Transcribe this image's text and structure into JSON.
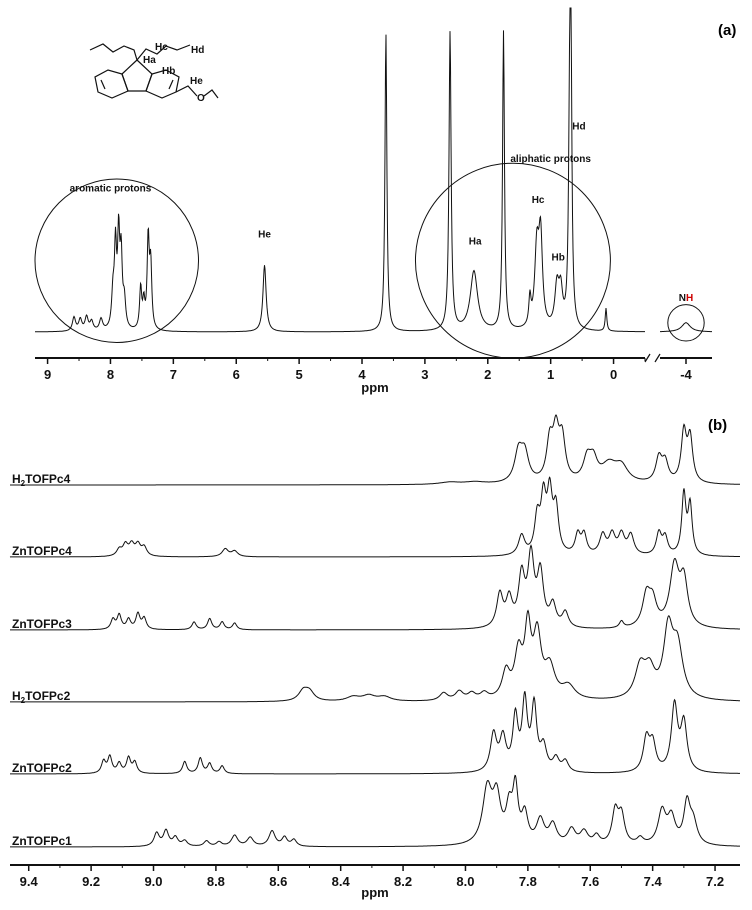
{
  "chart_data": [
    {
      "type": "line",
      "panel_label": "(a)",
      "xlabel": "ppm",
      "ylabel": "",
      "x_reversed": true,
      "axis_break": [
        -0.5,
        -3.5
      ],
      "x_ticks": [
        9,
        8,
        7,
        6,
        5,
        4,
        3,
        2,
        1,
        0,
        -4
      ],
      "x_tick_labels": [
        "9",
        "8",
        "7",
        "6",
        "5",
        "4",
        "3",
        "2",
        "1",
        "0",
        "-4"
      ],
      "xlim": [
        9.2,
        -4.5
      ],
      "ylim": [
        0,
        1.0
      ],
      "peaks": [
        {
          "x": 8.58,
          "h": 0.06,
          "w": 0.03
        },
        {
          "x": 8.48,
          "h": 0.05,
          "w": 0.03
        },
        {
          "x": 8.38,
          "h": 0.06,
          "w": 0.03
        },
        {
          "x": 8.3,
          "h": 0.04,
          "w": 0.03
        },
        {
          "x": 8.15,
          "h": 0.05,
          "w": 0.03
        },
        {
          "x": 7.96,
          "h": 0.15,
          "w": 0.025
        },
        {
          "x": 7.92,
          "h": 0.34,
          "w": 0.02
        },
        {
          "x": 7.87,
          "h": 0.39,
          "w": 0.02
        },
        {
          "x": 7.83,
          "h": 0.3,
          "w": 0.02
        },
        {
          "x": 7.78,
          "h": 0.12,
          "w": 0.025
        },
        {
          "x": 7.52,
          "h": 0.18,
          "w": 0.02
        },
        {
          "x": 7.47,
          "h": 0.11,
          "w": 0.02
        },
        {
          "x": 7.4,
          "h": 0.39,
          "w": 0.02
        },
        {
          "x": 7.36,
          "h": 0.27,
          "w": 0.02
        },
        {
          "x": 5.55,
          "h": 0.29,
          "w": 0.03
        },
        {
          "x": 3.62,
          "h": 1.3,
          "w": 0.018
        },
        {
          "x": 2.6,
          "h": 1.3,
          "w": 0.02
        },
        {
          "x": 2.22,
          "h": 0.26,
          "w": 0.07
        },
        {
          "x": 1.75,
          "h": 1.3,
          "w": 0.018
        },
        {
          "x": 1.33,
          "h": 0.12,
          "w": 0.02
        },
        {
          "x": 1.22,
          "h": 0.34,
          "w": 0.04
        },
        {
          "x": 1.16,
          "h": 0.38,
          "w": 0.035
        },
        {
          "x": 0.9,
          "h": 0.18,
          "w": 0.04
        },
        {
          "x": 0.84,
          "h": 0.15,
          "w": 0.035
        },
        {
          "x": 0.7,
          "h": 0.66,
          "w": 0.02
        },
        {
          "x": 0.68,
          "h": 1.3,
          "w": 0.018
        },
        {
          "x": 0.12,
          "h": 0.1,
          "w": 0.015
        },
        {
          "x": -4.0,
          "h": 0.04,
          "w": 0.1
        }
      ],
      "annotations": [
        {
          "text": "aromatic protons",
          "x": 8.0,
          "y": 0.61
        },
        {
          "text": "aliphatic protons",
          "x": 1.0,
          "y": 0.74
        },
        {
          "text": "He",
          "x": 5.55,
          "y": 0.41
        },
        {
          "text": "Ha",
          "x": 2.2,
          "y": 0.38
        },
        {
          "text": "Hc",
          "x": 1.2,
          "y": 0.56
        },
        {
          "text": "Hb",
          "x": 0.88,
          "y": 0.31
        },
        {
          "text": "Hd",
          "x": 0.55,
          "y": 0.88
        }
      ],
      "nh_label": {
        "prefix": "N",
        "highlight": "H",
        "highlight_color": "#cc0000"
      },
      "circles": [
        {
          "name": "aromatic-region-circle",
          "cx": 7.9,
          "cy": 0.31,
          "rx": 1.3
        },
        {
          "name": "aliphatic-region-circle",
          "cx": 1.6,
          "cy": 0.31,
          "rx": 1.55
        },
        {
          "name": "nh-circle",
          "cx": -4.0,
          "cy": 0.04,
          "rx": 0.35
        }
      ],
      "structure_labels": [
        "Ha",
        "Hb",
        "Hc",
        "Hd",
        "He",
        "O"
      ]
    },
    {
      "type": "line",
      "panel_label": "(b)",
      "xlabel": "ppm",
      "ylabel": "",
      "x_reversed": true,
      "x_ticks": [
        9.4,
        9.2,
        9.0,
        8.8,
        8.6,
        8.4,
        8.2,
        8.0,
        7.8,
        7.6,
        7.4,
        7.2
      ],
      "x_tick_labels": [
        "9.4",
        "9.2",
        "9.0",
        "8.8",
        "8.6",
        "8.4",
        "8.2",
        "8.0",
        "7.8",
        "7.6",
        "7.4",
        "7.2"
      ],
      "xlim": [
        9.46,
        7.12
      ],
      "series": [
        {
          "name": "H2TOFPc4",
          "label_parts": [
            "H",
            "2",
            "TOFPc4"
          ],
          "peaks": [
            {
              "x": 8.05,
              "h": 0.02,
              "w": 0.04
            },
            {
              "x": 7.97,
              "h": 0.02,
              "w": 0.04
            },
            {
              "x": 7.83,
              "h": 0.27,
              "w": 0.015
            },
            {
              "x": 7.81,
              "h": 0.25,
              "w": 0.015
            },
            {
              "x": 7.73,
              "h": 0.35,
              "w": 0.012
            },
            {
              "x": 7.71,
              "h": 0.42,
              "w": 0.012
            },
            {
              "x": 7.69,
              "h": 0.37,
              "w": 0.012
            },
            {
              "x": 7.61,
              "h": 0.2,
              "w": 0.015
            },
            {
              "x": 7.59,
              "h": 0.18,
              "w": 0.015
            },
            {
              "x": 7.54,
              "h": 0.16,
              "w": 0.03
            },
            {
              "x": 7.5,
              "h": 0.14,
              "w": 0.025
            },
            {
              "x": 7.38,
              "h": 0.22,
              "w": 0.012
            },
            {
              "x": 7.36,
              "h": 0.18,
              "w": 0.012
            },
            {
              "x": 7.3,
              "h": 0.45,
              "w": 0.01
            },
            {
              "x": 7.28,
              "h": 0.4,
              "w": 0.01
            }
          ]
        },
        {
          "name": "ZnTOFPc4",
          "label_parts": [
            "ZnTOFPc4"
          ],
          "peaks": [
            {
              "x": 9.11,
              "h": 0.06,
              "w": 0.01
            },
            {
              "x": 9.09,
              "h": 0.1,
              "w": 0.01
            },
            {
              "x": 9.07,
              "h": 0.1,
              "w": 0.01
            },
            {
              "x": 9.05,
              "h": 0.1,
              "w": 0.01
            },
            {
              "x": 9.03,
              "h": 0.08,
              "w": 0.01
            },
            {
              "x": 8.77,
              "h": 0.07,
              "w": 0.012
            },
            {
              "x": 8.74,
              "h": 0.05,
              "w": 0.012
            },
            {
              "x": 7.82,
              "h": 0.18,
              "w": 0.012
            },
            {
              "x": 7.77,
              "h": 0.32,
              "w": 0.01
            },
            {
              "x": 7.75,
              "h": 0.48,
              "w": 0.01
            },
            {
              "x": 7.73,
              "h": 0.52,
              "w": 0.01
            },
            {
              "x": 7.71,
              "h": 0.4,
              "w": 0.01
            },
            {
              "x": 7.64,
              "h": 0.18,
              "w": 0.01
            },
            {
              "x": 7.62,
              "h": 0.18,
              "w": 0.01
            },
            {
              "x": 7.56,
              "h": 0.18,
              "w": 0.012
            },
            {
              "x": 7.53,
              "h": 0.18,
              "w": 0.012
            },
            {
              "x": 7.5,
              "h": 0.18,
              "w": 0.012
            },
            {
              "x": 7.47,
              "h": 0.18,
              "w": 0.012
            },
            {
              "x": 7.38,
              "h": 0.2,
              "w": 0.01
            },
            {
              "x": 7.36,
              "h": 0.16,
              "w": 0.01
            },
            {
              "x": 7.3,
              "h": 0.55,
              "w": 0.008
            },
            {
              "x": 7.28,
              "h": 0.45,
              "w": 0.008
            }
          ]
        },
        {
          "name": "ZnTOFPc3",
          "label_parts": [
            "ZnTOFPc3"
          ],
          "peaks": [
            {
              "x": 9.13,
              "h": 0.09,
              "w": 0.008
            },
            {
              "x": 9.11,
              "h": 0.13,
              "w": 0.008
            },
            {
              "x": 9.08,
              "h": 0.09,
              "w": 0.008
            },
            {
              "x": 9.05,
              "h": 0.14,
              "w": 0.008
            },
            {
              "x": 9.03,
              "h": 0.1,
              "w": 0.008
            },
            {
              "x": 8.87,
              "h": 0.07,
              "w": 0.008
            },
            {
              "x": 8.82,
              "h": 0.1,
              "w": 0.008
            },
            {
              "x": 8.78,
              "h": 0.07,
              "w": 0.008
            },
            {
              "x": 8.74,
              "h": 0.06,
              "w": 0.008
            },
            {
              "x": 7.89,
              "h": 0.3,
              "w": 0.012
            },
            {
              "x": 7.86,
              "h": 0.25,
              "w": 0.012
            },
            {
              "x": 7.82,
              "h": 0.45,
              "w": 0.012
            },
            {
              "x": 7.79,
              "h": 0.62,
              "w": 0.012
            },
            {
              "x": 7.76,
              "h": 0.48,
              "w": 0.012
            },
            {
              "x": 7.72,
              "h": 0.2,
              "w": 0.012
            },
            {
              "x": 7.68,
              "h": 0.14,
              "w": 0.012
            },
            {
              "x": 7.5,
              "h": 0.06,
              "w": 0.008
            },
            {
              "x": 7.42,
              "h": 0.28,
              "w": 0.015
            },
            {
              "x": 7.4,
              "h": 0.22,
              "w": 0.015
            },
            {
              "x": 7.33,
              "h": 0.55,
              "w": 0.018
            },
            {
              "x": 7.3,
              "h": 0.4,
              "w": 0.015
            }
          ]
        },
        {
          "name": "H2TOFPc2",
          "label_parts": [
            "H",
            "2",
            "TOFPc2"
          ],
          "peaks": [
            {
              "x": 8.52,
              "h": 0.09,
              "w": 0.018
            },
            {
              "x": 8.5,
              "h": 0.08,
              "w": 0.018
            },
            {
              "x": 8.36,
              "h": 0.04,
              "w": 0.025
            },
            {
              "x": 8.31,
              "h": 0.05,
              "w": 0.025
            },
            {
              "x": 8.26,
              "h": 0.04,
              "w": 0.025
            },
            {
              "x": 8.07,
              "h": 0.07,
              "w": 0.015
            },
            {
              "x": 8.02,
              "h": 0.08,
              "w": 0.015
            },
            {
              "x": 7.98,
              "h": 0.06,
              "w": 0.015
            },
            {
              "x": 7.94,
              "h": 0.06,
              "w": 0.015
            },
            {
              "x": 7.87,
              "h": 0.24,
              "w": 0.015
            },
            {
              "x": 7.83,
              "h": 0.4,
              "w": 0.015
            },
            {
              "x": 7.8,
              "h": 0.6,
              "w": 0.012
            },
            {
              "x": 7.77,
              "h": 0.55,
              "w": 0.015
            },
            {
              "x": 7.73,
              "h": 0.28,
              "w": 0.02
            },
            {
              "x": 7.67,
              "h": 0.12,
              "w": 0.025
            },
            {
              "x": 7.44,
              "h": 0.28,
              "w": 0.02
            },
            {
              "x": 7.41,
              "h": 0.24,
              "w": 0.02
            },
            {
              "x": 7.35,
              "h": 0.6,
              "w": 0.018
            },
            {
              "x": 7.32,
              "h": 0.45,
              "w": 0.02
            }
          ]
        },
        {
          "name": "ZnTOFPc2",
          "label_parts": [
            "ZnTOFPc2"
          ],
          "peaks": [
            {
              "x": 9.16,
              "h": 0.11,
              "w": 0.008
            },
            {
              "x": 9.14,
              "h": 0.15,
              "w": 0.008
            },
            {
              "x": 9.11,
              "h": 0.09,
              "w": 0.008
            },
            {
              "x": 9.08,
              "h": 0.14,
              "w": 0.008
            },
            {
              "x": 9.06,
              "h": 0.1,
              "w": 0.008
            },
            {
              "x": 8.9,
              "h": 0.11,
              "w": 0.008
            },
            {
              "x": 8.85,
              "h": 0.14,
              "w": 0.008
            },
            {
              "x": 8.82,
              "h": 0.09,
              "w": 0.008
            },
            {
              "x": 8.78,
              "h": 0.07,
              "w": 0.008
            },
            {
              "x": 7.91,
              "h": 0.34,
              "w": 0.012
            },
            {
              "x": 7.88,
              "h": 0.3,
              "w": 0.012
            },
            {
              "x": 7.84,
              "h": 0.48,
              "w": 0.01
            },
            {
              "x": 7.81,
              "h": 0.62,
              "w": 0.01
            },
            {
              "x": 7.78,
              "h": 0.58,
              "w": 0.01
            },
            {
              "x": 7.75,
              "h": 0.22,
              "w": 0.012
            },
            {
              "x": 7.71,
              "h": 0.12,
              "w": 0.012
            },
            {
              "x": 7.68,
              "h": 0.1,
              "w": 0.012
            },
            {
              "x": 7.42,
              "h": 0.3,
              "w": 0.012
            },
            {
              "x": 7.4,
              "h": 0.25,
              "w": 0.012
            },
            {
              "x": 7.33,
              "h": 0.6,
              "w": 0.012
            },
            {
              "x": 7.3,
              "h": 0.44,
              "w": 0.012
            }
          ]
        },
        {
          "name": "ZnTOFPc1",
          "label_parts": [
            "ZnTOFPc1"
          ],
          "peaks": [
            {
              "x": 8.99,
              "h": 0.12,
              "w": 0.01
            },
            {
              "x": 8.96,
              "h": 0.14,
              "w": 0.01
            },
            {
              "x": 8.93,
              "h": 0.08,
              "w": 0.01
            },
            {
              "x": 8.9,
              "h": 0.05,
              "w": 0.01
            },
            {
              "x": 8.83,
              "h": 0.05,
              "w": 0.01
            },
            {
              "x": 8.79,
              "h": 0.04,
              "w": 0.01
            },
            {
              "x": 8.74,
              "h": 0.1,
              "w": 0.012
            },
            {
              "x": 8.69,
              "h": 0.08,
              "w": 0.012
            },
            {
              "x": 8.62,
              "h": 0.14,
              "w": 0.012
            },
            {
              "x": 8.58,
              "h": 0.08,
              "w": 0.01
            },
            {
              "x": 8.55,
              "h": 0.06,
              "w": 0.01
            },
            {
              "x": 7.93,
              "h": 0.5,
              "w": 0.018
            },
            {
              "x": 7.9,
              "h": 0.4,
              "w": 0.015
            },
            {
              "x": 7.86,
              "h": 0.3,
              "w": 0.012
            },
            {
              "x": 7.84,
              "h": 0.48,
              "w": 0.01
            },
            {
              "x": 7.81,
              "h": 0.26,
              "w": 0.012
            },
            {
              "x": 7.76,
              "h": 0.22,
              "w": 0.015
            },
            {
              "x": 7.72,
              "h": 0.18,
              "w": 0.015
            },
            {
              "x": 7.66,
              "h": 0.14,
              "w": 0.015
            },
            {
              "x": 7.62,
              "h": 0.12,
              "w": 0.015
            },
            {
              "x": 7.58,
              "h": 0.08,
              "w": 0.012
            },
            {
              "x": 7.52,
              "h": 0.3,
              "w": 0.012
            },
            {
              "x": 7.5,
              "h": 0.26,
              "w": 0.012
            },
            {
              "x": 7.44,
              "h": 0.06,
              "w": 0.012
            },
            {
              "x": 7.37,
              "h": 0.3,
              "w": 0.015
            },
            {
              "x": 7.34,
              "h": 0.24,
              "w": 0.015
            },
            {
              "x": 7.29,
              "h": 0.36,
              "w": 0.012
            },
            {
              "x": 7.27,
              "h": 0.2,
              "w": 0.015
            }
          ]
        }
      ]
    }
  ]
}
